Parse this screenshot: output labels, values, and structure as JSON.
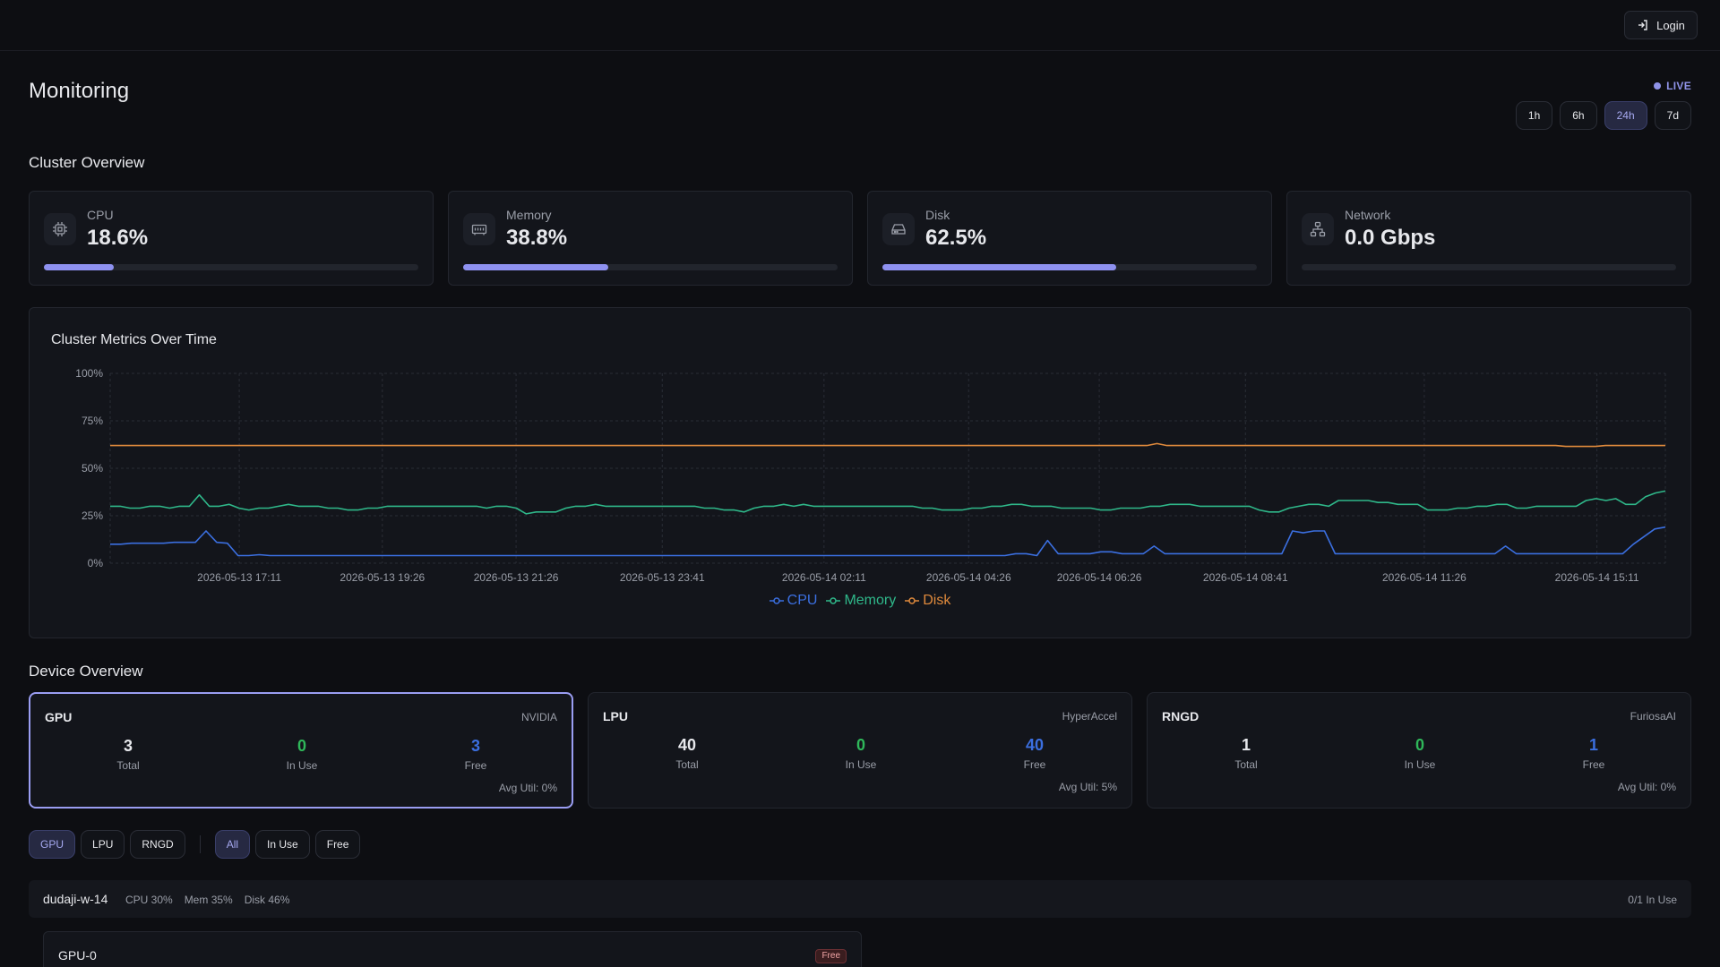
{
  "header": {
    "login_label": "Login"
  },
  "page": {
    "title": "Monitoring",
    "live_label": "LIVE"
  },
  "time_ranges": [
    {
      "label": "1h",
      "active": false
    },
    {
      "label": "6h",
      "active": false
    },
    {
      "label": "24h",
      "active": true
    },
    {
      "label": "7d",
      "active": false
    }
  ],
  "cluster_overview": {
    "title": "Cluster Overview",
    "cards": [
      {
        "label": "CPU",
        "value": "18.6%",
        "level": 18.6,
        "icon": "cpu-icon"
      },
      {
        "label": "Memory",
        "value": "38.8%",
        "level": 38.8,
        "icon": "memory-icon"
      },
      {
        "label": "Disk",
        "value": "62.5%",
        "level": 62.5,
        "icon": "disk-icon"
      },
      {
        "label": "Network",
        "value": "0.0 Gbps",
        "level": 0,
        "icon": "network-icon"
      }
    ]
  },
  "chart_data": {
    "type": "line",
    "title": "Cluster Metrics Over Time",
    "ylim": [
      0,
      100
    ],
    "y_ticks": [
      "0%",
      "25%",
      "50%",
      "75%",
      "100%"
    ],
    "x_ticks": [
      "2026-05-13 17:11",
      "2026-05-13 19:26",
      "2026-05-13 21:26",
      "2026-05-13 23:41",
      "2026-05-14 02:11",
      "2026-05-14 04:26",
      "2026-05-14 06:26",
      "2026-05-14 08:41",
      "2026-05-14 11:26",
      "2026-05-14 15:11"
    ],
    "x_tick_positions": [
      0.083,
      0.175,
      0.261,
      0.355,
      0.459,
      0.552,
      0.636,
      0.73,
      0.845,
      0.956
    ],
    "series": [
      {
        "name": "CPU",
        "color": "#3b6fe0",
        "values": [
          10,
          10,
          10.5,
          10.5,
          10.5,
          10.5,
          11,
          11,
          11,
          17,
          11,
          10.5,
          4,
          4,
          4.5,
          4,
          4,
          4,
          4,
          4,
          4,
          4,
          4,
          4,
          4,
          4,
          4,
          4,
          4,
          4,
          4,
          4,
          4,
          4,
          4,
          4,
          4,
          4,
          4,
          4,
          4,
          4,
          4,
          4,
          4,
          4,
          4,
          4,
          4,
          4,
          4,
          4,
          4,
          4,
          4,
          4,
          4,
          4,
          4,
          4,
          4,
          4,
          4,
          4,
          4,
          4,
          4,
          4,
          4,
          4,
          4,
          4,
          4,
          4,
          4,
          4,
          4,
          4,
          4,
          4,
          4,
          4,
          4,
          4,
          4,
          5,
          5,
          4,
          12,
          5,
          5,
          5,
          5,
          6,
          6,
          5,
          5,
          5,
          9,
          5,
          5,
          5,
          5,
          5,
          5,
          5,
          5,
          5,
          5,
          5,
          5,
          17,
          16,
          17,
          17,
          5,
          5,
          5,
          5,
          5,
          5,
          5,
          5,
          5,
          5,
          5,
          5,
          5,
          5,
          5,
          5,
          9,
          5,
          5,
          5,
          5,
          5,
          5,
          5,
          5,
          5,
          5,
          5,
          10,
          14,
          18,
          19
        ]
      },
      {
        "name": "Memory",
        "color": "#2fb88a",
        "values": [
          30,
          30,
          29,
          29,
          30,
          30,
          29,
          30,
          30,
          36,
          30,
          30,
          31,
          29,
          28,
          29,
          29,
          30,
          31,
          30,
          30,
          30,
          29,
          29,
          28,
          28,
          29,
          29,
          30,
          30,
          30,
          30,
          30,
          30,
          30,
          30,
          30,
          30,
          29,
          30,
          30,
          29,
          26,
          27,
          27,
          27,
          29,
          30,
          30,
          31,
          30,
          30,
          30,
          30,
          30,
          30,
          30,
          30,
          30,
          30,
          29,
          29,
          28,
          28,
          27,
          29,
          30,
          30,
          31,
          30,
          31,
          30,
          30,
          30,
          30,
          30,
          30,
          30,
          30,
          30,
          30,
          30,
          29,
          29,
          28,
          28,
          28,
          29,
          29,
          30,
          30,
          31,
          31,
          30,
          30,
          30,
          29,
          29,
          29,
          29,
          28,
          28,
          29,
          29,
          29,
          30,
          30,
          31,
          31,
          31,
          30,
          30,
          30,
          30,
          30,
          30,
          28,
          27,
          27,
          29,
          30,
          31,
          31,
          30,
          33,
          33,
          33,
          33,
          32,
          32,
          31,
          31,
          31,
          28,
          28,
          28,
          29,
          29,
          30,
          30,
          31,
          31,
          29,
          29,
          30,
          30,
          30,
          30,
          30,
          33,
          34,
          33,
          34,
          31,
          31,
          35,
          37,
          38
        ]
      },
      {
        "name": "Disk",
        "color": "#e08a3c",
        "values": [
          62,
          62,
          62,
          62,
          62,
          62,
          62,
          62,
          62,
          62,
          62,
          62,
          62,
          62,
          62,
          62,
          62,
          62,
          62,
          62,
          62,
          62,
          62,
          62,
          62,
          62,
          62,
          62,
          62,
          62,
          62,
          62,
          62,
          62,
          62,
          62,
          62,
          62,
          62,
          62,
          62,
          62,
          62,
          62,
          62,
          62,
          62,
          62,
          62,
          62,
          62,
          62,
          62,
          62,
          62,
          62,
          62,
          62,
          62,
          62,
          62,
          62,
          62,
          62,
          62,
          62,
          62,
          62,
          62,
          62,
          62,
          62,
          62,
          62,
          62,
          62,
          62,
          62,
          62,
          62,
          62,
          62,
          62,
          62,
          62,
          62,
          62,
          62,
          62,
          62,
          62,
          62,
          62,
          62,
          62,
          62,
          62,
          62,
          62,
          62,
          62,
          62,
          62,
          62,
          62,
          63,
          62,
          62,
          62,
          62,
          62,
          62,
          62,
          62,
          62,
          62,
          62,
          62,
          62,
          62,
          62,
          62,
          62,
          62,
          62,
          62,
          62,
          62,
          62,
          62,
          62,
          62,
          62,
          62,
          62,
          62,
          62,
          62,
          62,
          62,
          62,
          62,
          62,
          62,
          62,
          62,
          61.5,
          61.5,
          61.5,
          61.5,
          62,
          62,
          62,
          62,
          62,
          62,
          62
        ]
      }
    ]
  },
  "device_overview": {
    "title": "Device Overview",
    "total_label": "Total",
    "in_use_label": "In Use",
    "free_label": "Free",
    "cards": [
      {
        "name": "GPU",
        "vendor": "NVIDIA",
        "total": "3",
        "in_use": "0",
        "free": "3",
        "avg_util": "Avg Util: 0%",
        "selected": true
      },
      {
        "name": "LPU",
        "vendor": "HyperAccel",
        "total": "40",
        "in_use": "0",
        "free": "40",
        "avg_util": "Avg Util: 5%",
        "selected": false
      },
      {
        "name": "RNGD",
        "vendor": "FuriosaAI",
        "total": "1",
        "in_use": "0",
        "free": "1",
        "avg_util": "Avg Util: 0%",
        "selected": false
      }
    ]
  },
  "filters": {
    "device_types": [
      {
        "label": "GPU",
        "active": true
      },
      {
        "label": "LPU",
        "active": false
      },
      {
        "label": "RNGD",
        "active": false
      }
    ],
    "status": [
      {
        "label": "All",
        "active": true
      },
      {
        "label": "In Use",
        "active": false
      },
      {
        "label": "Free",
        "active": false
      }
    ]
  },
  "nodes": [
    {
      "name": "dudaji-w-14",
      "cpu": "CPU 30%",
      "mem": "Mem 35%",
      "disk": "Disk 46%",
      "in_use": "0/1 In Use",
      "devices": [
        {
          "name": "GPU-0",
          "status": "Free"
        }
      ]
    }
  ],
  "colors": {
    "accent": "#8e91f0",
    "in_use_green": "#2fb85a",
    "free_blue": "#3b6fe0"
  }
}
